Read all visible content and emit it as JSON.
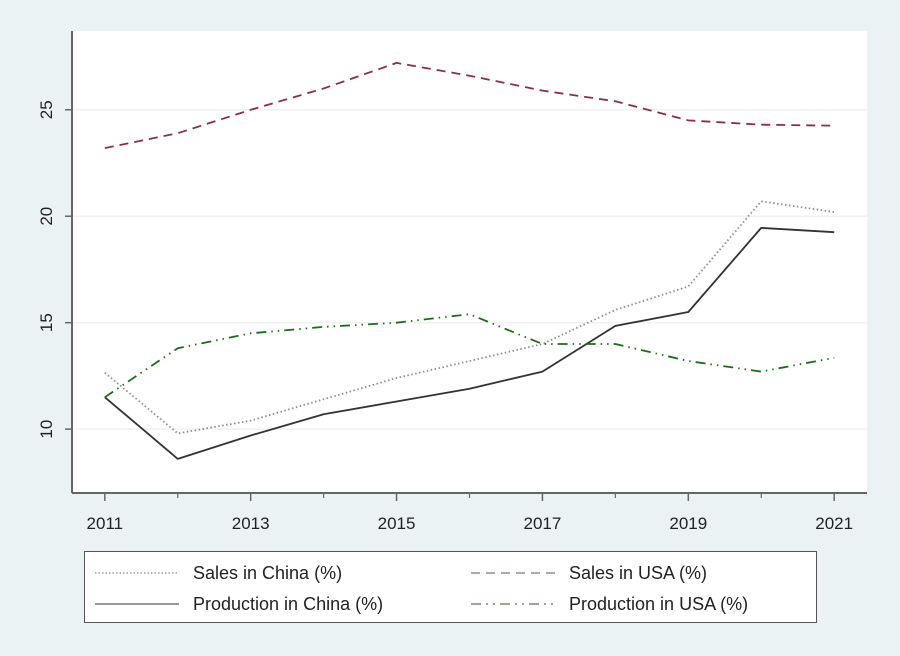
{
  "chart_data": {
    "type": "line",
    "title": "",
    "xlabel": "",
    "ylabel": "",
    "x": [
      2011,
      2012,
      2013,
      2014,
      2015,
      2016,
      2017,
      2018,
      2019,
      2020,
      2021
    ],
    "xlim": [
      2010.55,
      2021.45
    ],
    "ylim": [
      7.0,
      28.7
    ],
    "xticks": [
      2011,
      2013,
      2015,
      2017,
      2019,
      2021
    ],
    "xminor_ticks": [
      2012,
      2014,
      2016,
      2018,
      2020
    ],
    "yticks": [
      10,
      15,
      20,
      25
    ],
    "grid": "horizontal",
    "legend_position": "bottom",
    "series": [
      {
        "name": "Sales in China (%)",
        "color": "#8c8c8c",
        "style": "dotted",
        "values": [
          12.65,
          9.8,
          10.4,
          11.4,
          12.4,
          13.2,
          14.0,
          15.6,
          16.7,
          20.7,
          20.2
        ]
      },
      {
        "name": "Sales in USA (%)",
        "color": "#8b2f45",
        "style": "dashed",
        "values": [
          23.2,
          23.9,
          25.0,
          26.0,
          27.2,
          26.6,
          25.9,
          25.4,
          24.5,
          24.3,
          24.25
        ]
      },
      {
        "name": "Production in China (%)",
        "color": "#333333",
        "style": "solid",
        "values": [
          11.5,
          8.6,
          9.7,
          10.7,
          11.3,
          11.9,
          12.7,
          14.85,
          15.5,
          19.45,
          19.25
        ]
      },
      {
        "name": "Production in USA (%)",
        "color": "#1a6e1a",
        "style": "dashdot",
        "values": [
          11.5,
          13.8,
          14.5,
          14.8,
          15.0,
          15.4,
          14.0,
          14.0,
          13.2,
          12.7,
          13.35
        ]
      }
    ]
  },
  "legend": {
    "items": [
      {
        "label": "Sales in China (%)"
      },
      {
        "label": "Sales in USA (%)"
      },
      {
        "label": "Production in China (%)"
      },
      {
        "label": "Production in USA (%)"
      }
    ]
  }
}
